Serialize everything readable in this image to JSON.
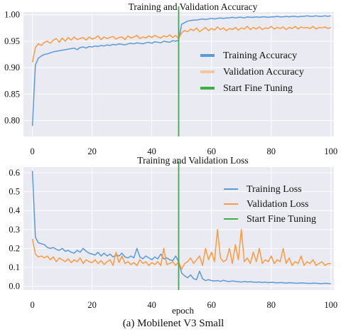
{
  "caption": "(a) Mobilenet V3 Small",
  "colors": {
    "training": "#5b9bd5",
    "validation": "#ff9a3c",
    "fine_tune": "#3cb043"
  },
  "chart_data": [
    {
      "type": "line",
      "title": "Training and Validation Accuracy",
      "xlabel": "",
      "ylabel": "",
      "xlim": [
        -3,
        101
      ],
      "ylim": [
        0.77,
        1.005
      ],
      "xticks": [
        0,
        20,
        40,
        60,
        80,
        100
      ],
      "xtick_labels": [
        "0",
        "20",
        "40",
        "60",
        "80",
        "100"
      ],
      "yticks": [
        0.8,
        0.85,
        0.9,
        0.95,
        1.0
      ],
      "ytick_labels": [
        "0.80",
        "0.85",
        "0.90",
        "0.95",
        "1.00"
      ],
      "grid": true,
      "legend_position": "center-right",
      "vline": {
        "name": "Start Fine Tuning",
        "x": 49
      },
      "legend": [
        "Training Accuracy",
        "Validation Accuracy",
        "Start Fine Tuning"
      ],
      "series": [
        {
          "name": "Training Accuracy",
          "x": [
            0,
            1,
            2,
            3,
            4,
            5,
            6,
            7,
            8,
            9,
            10,
            11,
            12,
            13,
            14,
            15,
            16,
            17,
            18,
            19,
            20,
            21,
            22,
            23,
            24,
            25,
            26,
            27,
            28,
            29,
            30,
            31,
            32,
            33,
            34,
            35,
            36,
            37,
            38,
            39,
            40,
            41,
            42,
            43,
            44,
            45,
            46,
            47,
            48,
            49,
            50,
            51,
            52,
            53,
            54,
            55,
            56,
            57,
            58,
            59,
            60,
            61,
            62,
            63,
            64,
            65,
            66,
            67,
            68,
            69,
            70,
            71,
            72,
            73,
            74,
            75,
            76,
            77,
            78,
            79,
            80,
            81,
            82,
            83,
            84,
            85,
            86,
            87,
            88,
            89,
            90,
            91,
            92,
            93,
            94,
            95,
            96,
            97,
            98,
            99,
            100
          ],
          "y": [
            0.79,
            0.905,
            0.918,
            0.922,
            0.925,
            0.926,
            0.928,
            0.93,
            0.931,
            0.932,
            0.933,
            0.934,
            0.935,
            0.936,
            0.937,
            0.934,
            0.938,
            0.939,
            0.937,
            0.94,
            0.939,
            0.941,
            0.94,
            0.942,
            0.941,
            0.943,
            0.942,
            0.944,
            0.943,
            0.945,
            0.944,
            0.943,
            0.945,
            0.946,
            0.945,
            0.947,
            0.946,
            0.945,
            0.947,
            0.948,
            0.946,
            0.949,
            0.948,
            0.947,
            0.95,
            0.949,
            0.948,
            0.951,
            0.95,
            0.952,
            0.982,
            0.985,
            0.988,
            0.989,
            0.99,
            0.99,
            0.991,
            0.992,
            0.991,
            0.992,
            0.993,
            0.992,
            0.993,
            0.994,
            0.993,
            0.994,
            0.994,
            0.995,
            0.994,
            0.995,
            0.995,
            0.994,
            0.996,
            0.995,
            0.995,
            0.996,
            0.995,
            0.996,
            0.996,
            0.995,
            0.996,
            0.996,
            0.997,
            0.996,
            0.996,
            0.997,
            0.996,
            0.997,
            0.997,
            0.996,
            0.997,
            0.997,
            0.998,
            0.997,
            0.997,
            0.998,
            0.997,
            0.997,
            0.998,
            0.997,
            0.998
          ]
        },
        {
          "name": "Validation Accuracy",
          "x": [
            0,
            1,
            2,
            3,
            4,
            5,
            6,
            7,
            8,
            9,
            10,
            11,
            12,
            13,
            14,
            15,
            16,
            17,
            18,
            19,
            20,
            21,
            22,
            23,
            24,
            25,
            26,
            27,
            28,
            29,
            30,
            31,
            32,
            33,
            34,
            35,
            36,
            37,
            38,
            39,
            40,
            41,
            42,
            43,
            44,
            45,
            46,
            47,
            48,
            49,
            50,
            51,
            52,
            53,
            54,
            55,
            56,
            57,
            58,
            59,
            60,
            61,
            62,
            63,
            64,
            65,
            66,
            67,
            68,
            69,
            70,
            71,
            72,
            73,
            74,
            75,
            76,
            77,
            78,
            79,
            80,
            81,
            82,
            83,
            84,
            85,
            86,
            87,
            88,
            89,
            90,
            91,
            92,
            93,
            94,
            95,
            96,
            97,
            98,
            99,
            100
          ],
          "y": [
            0.91,
            0.938,
            0.945,
            0.942,
            0.948,
            0.95,
            0.946,
            0.952,
            0.955,
            0.948,
            0.956,
            0.95,
            0.957,
            0.952,
            0.958,
            0.953,
            0.955,
            0.957,
            0.952,
            0.958,
            0.954,
            0.956,
            0.96,
            0.953,
            0.958,
            0.955,
            0.957,
            0.959,
            0.954,
            0.957,
            0.958,
            0.953,
            0.96,
            0.956,
            0.958,
            0.961,
            0.955,
            0.958,
            0.956,
            0.96,
            0.957,
            0.961,
            0.958,
            0.956,
            0.96,
            0.958,
            0.962,
            0.957,
            0.961,
            0.955,
            0.966,
            0.97,
            0.968,
            0.973,
            0.97,
            0.975,
            0.968,
            0.972,
            0.976,
            0.97,
            0.974,
            0.971,
            0.977,
            0.972,
            0.975,
            0.97,
            0.974,
            0.972,
            0.976,
            0.971,
            0.975,
            0.973,
            0.978,
            0.972,
            0.976,
            0.973,
            0.977,
            0.972,
            0.975,
            0.974,
            0.978,
            0.973,
            0.976,
            0.974,
            0.977,
            0.972,
            0.976,
            0.974,
            0.978,
            0.973,
            0.977,
            0.975,
            0.976,
            0.974,
            0.978,
            0.973,
            0.976,
            0.975,
            0.977,
            0.974,
            0.976
          ]
        }
      ]
    },
    {
      "type": "line",
      "title": "Training and Validation Loss",
      "xlabel": "epoch",
      "ylabel": "",
      "xlim": [
        -3,
        101
      ],
      "ylim": [
        -0.02,
        0.63
      ],
      "xticks": [
        0,
        20,
        40,
        60,
        80,
        100
      ],
      "xtick_labels": [
        "0",
        "20",
        "40",
        "60",
        "80",
        "100"
      ],
      "yticks": [
        0.0,
        0.1,
        0.2,
        0.3,
        0.4,
        0.5,
        0.6
      ],
      "ytick_labels": [
        "0.0",
        "0.1",
        "0.2",
        "0.3",
        "0.4",
        "0.5",
        "0.6"
      ],
      "grid": true,
      "legend_position": "top-right",
      "vline": {
        "name": "Start Fine Tuning",
        "x": 49
      },
      "legend": [
        "Training Loss",
        "Validation Loss",
        "Start Fine Tuning"
      ],
      "series": [
        {
          "name": "Training Loss",
          "x": [
            0,
            1,
            2,
            3,
            4,
            5,
            6,
            7,
            8,
            9,
            10,
            11,
            12,
            13,
            14,
            15,
            16,
            17,
            18,
            19,
            20,
            21,
            22,
            23,
            24,
            25,
            26,
            27,
            28,
            29,
            30,
            31,
            32,
            33,
            34,
            35,
            36,
            37,
            38,
            39,
            40,
            41,
            42,
            43,
            44,
            45,
            46,
            47,
            48,
            49,
            50,
            51,
            52,
            53,
            54,
            55,
            56,
            57,
            58,
            59,
            60,
            61,
            62,
            63,
            64,
            65,
            66,
            67,
            68,
            69,
            70,
            71,
            72,
            73,
            74,
            75,
            76,
            77,
            78,
            79,
            80,
            81,
            82,
            83,
            84,
            85,
            86,
            87,
            88,
            89,
            90,
            91,
            92,
            93,
            94,
            95,
            96,
            97,
            98,
            99,
            100
          ],
          "y": [
            0.61,
            0.26,
            0.23,
            0.225,
            0.22,
            0.205,
            0.2,
            0.205,
            0.195,
            0.19,
            0.2,
            0.185,
            0.19,
            0.18,
            0.175,
            0.19,
            0.18,
            0.2,
            0.185,
            0.175,
            0.17,
            0.165,
            0.18,
            0.16,
            0.175,
            0.16,
            0.17,
            0.155,
            0.165,
            0.16,
            0.175,
            0.155,
            0.15,
            0.16,
            0.15,
            0.2,
            0.155,
            0.145,
            0.16,
            0.15,
            0.14,
            0.155,
            0.145,
            0.17,
            0.145,
            0.15,
            0.14,
            0.135,
            0.16,
            0.13,
            0.07,
            0.055,
            0.045,
            0.06,
            0.04,
            0.035,
            0.08,
            0.04,
            0.03,
            0.035,
            0.03,
            0.028,
            0.03,
            0.026,
            0.032,
            0.027,
            0.025,
            0.028,
            0.026,
            0.024,
            0.022,
            0.025,
            0.023,
            0.024,
            0.022,
            0.021,
            0.023,
            0.02,
            0.022,
            0.019,
            0.021,
            0.02,
            0.018,
            0.02,
            0.019,
            0.017,
            0.019,
            0.018,
            0.017,
            0.016,
            0.018,
            0.017,
            0.016,
            0.015,
            0.017,
            0.016,
            0.015,
            0.014,
            0.016,
            0.015,
            0.014
          ]
        },
        {
          "name": "Validation Loss",
          "x": [
            0,
            1,
            2,
            3,
            4,
            5,
            6,
            7,
            8,
            9,
            10,
            11,
            12,
            13,
            14,
            15,
            16,
            17,
            18,
            19,
            20,
            21,
            22,
            23,
            24,
            25,
            26,
            27,
            28,
            29,
            30,
            31,
            32,
            33,
            34,
            35,
            36,
            37,
            38,
            39,
            40,
            41,
            42,
            43,
            44,
            45,
            46,
            47,
            48,
            49,
            50,
            51,
            52,
            53,
            54,
            55,
            56,
            57,
            58,
            59,
            60,
            61,
            62,
            63,
            64,
            65,
            66,
            67,
            68,
            69,
            70,
            71,
            72,
            73,
            74,
            75,
            76,
            77,
            78,
            79,
            80,
            81,
            82,
            83,
            84,
            85,
            86,
            87,
            88,
            89,
            90,
            91,
            92,
            93,
            94,
            95,
            96,
            97,
            98,
            99,
            100
          ],
          "y": [
            0.25,
            0.17,
            0.155,
            0.16,
            0.15,
            0.16,
            0.14,
            0.155,
            0.13,
            0.15,
            0.14,
            0.13,
            0.145,
            0.125,
            0.14,
            0.13,
            0.15,
            0.12,
            0.14,
            0.13,
            0.125,
            0.14,
            0.12,
            0.135,
            0.115,
            0.13,
            0.14,
            0.11,
            0.18,
            0.125,
            0.16,
            0.12,
            0.13,
            0.115,
            0.125,
            0.11,
            0.14,
            0.12,
            0.13,
            0.11,
            0.125,
            0.115,
            0.13,
            0.11,
            0.2,
            0.115,
            0.12,
            0.13,
            0.11,
            0.13,
            0.09,
            0.12,
            0.13,
            0.15,
            0.12,
            0.14,
            0.16,
            0.11,
            0.2,
            0.14,
            0.18,
            0.13,
            0.3,
            0.15,
            0.13,
            0.14,
            0.2,
            0.12,
            0.22,
            0.14,
            0.3,
            0.13,
            0.15,
            0.12,
            0.18,
            0.13,
            0.2,
            0.12,
            0.14,
            0.13,
            0.16,
            0.12,
            0.14,
            0.13,
            0.2,
            0.12,
            0.15,
            0.11,
            0.13,
            0.12,
            0.16,
            0.11,
            0.13,
            0.12,
            0.14,
            0.11,
            0.12,
            0.13,
            0.11,
            0.12,
            0.12
          ]
        }
      ]
    }
  ]
}
